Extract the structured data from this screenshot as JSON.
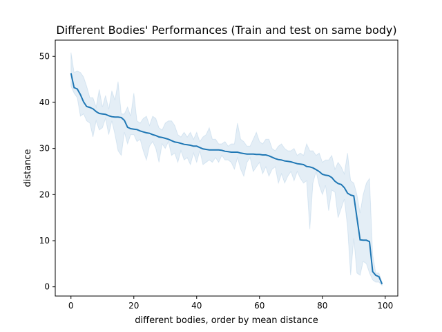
{
  "chart_data": {
    "type": "line",
    "title": "Different Bodies' Performances (Train and test on same body)",
    "xlabel": "different bodies, order by mean distance",
    "ylabel": "distance",
    "xlim": [
      -5,
      104
    ],
    "ylim": [
      -2,
      53.5
    ],
    "xticks": [
      0,
      20,
      40,
      60,
      80,
      100
    ],
    "yticks": [
      0,
      10,
      20,
      30,
      40,
      50
    ],
    "grid": false,
    "colors": {
      "line": "#1f77b4",
      "band": "#1f77b4"
    },
    "series": [
      {
        "x": [
          0,
          1,
          2,
          3,
          4,
          5,
          6,
          7,
          8,
          9,
          10,
          11,
          12,
          13,
          14,
          15,
          16,
          17,
          18,
          19,
          20,
          21,
          22,
          23,
          24,
          25,
          26,
          27,
          28,
          29,
          30,
          31,
          32,
          33,
          34,
          35,
          36,
          37,
          38,
          39,
          40,
          41,
          42,
          43,
          44,
          45,
          46,
          47,
          48,
          49,
          50,
          51,
          52,
          53,
          54,
          55,
          56,
          57,
          58,
          59,
          60,
          61,
          62,
          63,
          64,
          65,
          66,
          67,
          68,
          69,
          70,
          71,
          72,
          73,
          74,
          75,
          76,
          77,
          78,
          79,
          80,
          81,
          82,
          83,
          84,
          85,
          86,
          87,
          88,
          89,
          90,
          91,
          92,
          93,
          94,
          95,
          96,
          97,
          98,
          99
        ],
        "values": [
          46.3,
          43.2,
          42.9,
          41.7,
          40.1,
          39.1,
          38.9,
          38.6,
          38.0,
          37.6,
          37.5,
          37.4,
          37.1,
          36.9,
          36.8,
          36.8,
          36.7,
          36.1,
          34.6,
          34.3,
          34.2,
          34.1,
          33.8,
          33.6,
          33.4,
          33.3,
          33.0,
          32.8,
          32.5,
          32.4,
          32.2,
          32.0,
          31.7,
          31.4,
          31.3,
          31.1,
          30.9,
          30.8,
          30.7,
          30.5,
          30.5,
          30.2,
          29.9,
          29.8,
          29.7,
          29.7,
          29.7,
          29.7,
          29.6,
          29.4,
          29.3,
          29.2,
          29.2,
          29.2,
          29.0,
          28.9,
          28.8,
          28.8,
          28.8,
          28.7,
          28.7,
          28.6,
          28.6,
          28.4,
          28.1,
          27.8,
          27.6,
          27.5,
          27.3,
          27.2,
          27.1,
          26.9,
          26.7,
          26.6,
          26.5,
          26.1,
          26.0,
          25.8,
          25.4,
          25.0,
          24.4,
          24.2,
          24.1,
          23.7,
          22.9,
          22.4,
          22.2,
          21.5,
          20.3,
          19.9,
          19.7,
          15.0,
          10.2,
          10.1,
          10.1,
          9.8,
          3.3,
          2.5,
          2.2,
          0.6
        ],
        "lower": [
          43.5,
          42.0,
          41.0,
          37.0,
          37.5,
          36.0,
          35.5,
          32.5,
          36.0,
          34.0,
          34.5,
          36.5,
          33.0,
          36.0,
          33.0,
          29.5,
          28.5,
          33.5,
          31.0,
          33.0,
          33.0,
          31.5,
          32.0,
          29.5,
          27.5,
          30.5,
          31.5,
          30.0,
          27.0,
          31.0,
          30.0,
          31.5,
          28.5,
          29.0,
          27.0,
          29.5,
          27.5,
          28.0,
          26.5,
          29.0,
          27.0,
          29.5,
          26.5,
          27.0,
          27.5,
          27.0,
          28.0,
          27.0,
          28.5,
          27.5,
          27.5,
          27.0,
          25.5,
          28.0,
          25.5,
          24.0,
          27.0,
          28.0,
          25.0,
          26.0,
          27.0,
          24.5,
          26.0,
          24.0,
          25.5,
          26.0,
          22.5,
          24.5,
          22.5,
          24.0,
          25.0,
          23.0,
          25.0,
          23.5,
          22.5,
          23.0,
          12.5,
          22.5,
          25.0,
          22.0,
          20.0,
          22.0,
          16.5,
          21.0,
          20.5,
          15.0,
          17.0,
          19.0,
          13.0,
          2.5,
          10.5,
          3.0,
          2.5,
          5.5,
          5.0,
          3.0,
          1.5,
          1.0,
          1.0,
          0.3
        ],
        "upper": [
          50.8,
          46.5,
          46.8,
          46.5,
          45.5,
          43.5,
          41.0,
          41.0,
          39.0,
          42.8,
          39.0,
          41.5,
          38.5,
          42.5,
          40.5,
          44.5,
          37.5,
          37.5,
          39.0,
          37.0,
          42.0,
          36.0,
          35.5,
          36.5,
          37.0,
          35.0,
          37.0,
          36.5,
          34.5,
          34.0,
          35.5,
          36.0,
          36.0,
          35.0,
          33.0,
          32.5,
          33.5,
          32.5,
          33.5,
          32.0,
          33.5,
          31.5,
          32.5,
          33.0,
          34.5,
          32.0,
          32.0,
          31.0,
          31.0,
          31.5,
          30.5,
          31.0,
          31.0,
          35.5,
          32.0,
          31.5,
          30.5,
          30.5,
          32.0,
          33.5,
          31.5,
          31.0,
          32.0,
          32.0,
          30.0,
          29.5,
          30.5,
          31.0,
          30.0,
          29.5,
          29.5,
          30.0,
          28.5,
          29.0,
          28.5,
          31.0,
          29.5,
          29.5,
          28.5,
          29.0,
          27.0,
          27.5,
          27.5,
          28.5,
          25.5,
          27.0,
          26.0,
          24.5,
          29.0,
          23.0,
          22.5,
          20.0,
          16.0,
          20.0,
          22.5,
          23.5,
          7.0,
          3.0,
          3.0,
          1.0
        ]
      }
    ]
  }
}
